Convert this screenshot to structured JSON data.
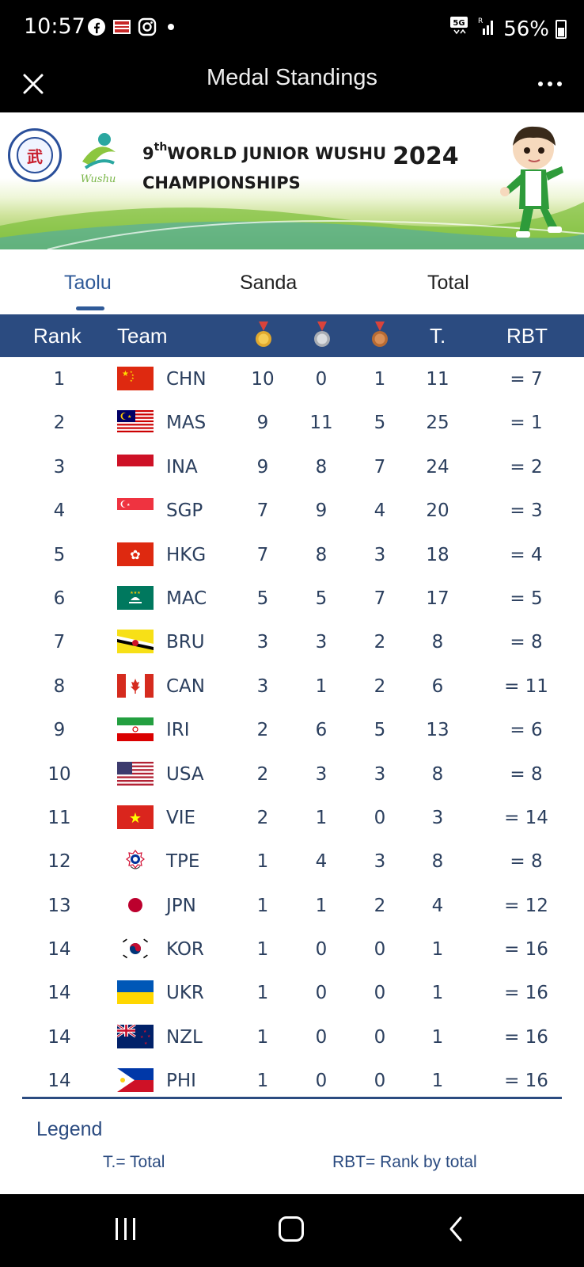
{
  "status_bar": {
    "time": "10:57",
    "battery": "56%",
    "network": "5G"
  },
  "app_bar": {
    "title": "Medal Standings"
  },
  "banner": {
    "ordinal": "9",
    "ordinal_suffix": "th",
    "title_line1": "WORLD JUNIOR WUSHU",
    "year": "2024",
    "title_line2": "CHAMPIONSHIPS",
    "logo_text": "Wushu"
  },
  "tabs": [
    {
      "label": "Taolu",
      "active": true
    },
    {
      "label": "Sanda",
      "active": false
    },
    {
      "label": "Total",
      "active": false
    }
  ],
  "table": {
    "headers": {
      "rank": "Rank",
      "team": "Team",
      "gold_icon": "gold-medal-icon",
      "silver_icon": "silver-medal-icon",
      "bronze_icon": "bronze-medal-icon",
      "total": "T.",
      "rbt": "RBT"
    },
    "rows": [
      {
        "rank": "1",
        "team": "CHN",
        "flag": "china-flag-icon",
        "gold": "10",
        "silver": "0",
        "bronze": "1",
        "total": "11",
        "rbt": "= 7"
      },
      {
        "rank": "2",
        "team": "MAS",
        "flag": "malaysia-flag-icon",
        "gold": "9",
        "silver": "11",
        "bronze": "5",
        "total": "25",
        "rbt": "= 1"
      },
      {
        "rank": "3",
        "team": "INA",
        "flag": "indonesia-flag-icon",
        "gold": "9",
        "silver": "8",
        "bronze": "7",
        "total": "24",
        "rbt": "= 2"
      },
      {
        "rank": "4",
        "team": "SGP",
        "flag": "singapore-flag-icon",
        "gold": "7",
        "silver": "9",
        "bronze": "4",
        "total": "20",
        "rbt": "= 3"
      },
      {
        "rank": "5",
        "team": "HKG",
        "flag": "hong-kong-flag-icon",
        "gold": "7",
        "silver": "8",
        "bronze": "3",
        "total": "18",
        "rbt": "= 4"
      },
      {
        "rank": "6",
        "team": "MAC",
        "flag": "macau-flag-icon",
        "gold": "5",
        "silver": "5",
        "bronze": "7",
        "total": "17",
        "rbt": "= 5"
      },
      {
        "rank": "7",
        "team": "BRU",
        "flag": "brunei-flag-icon",
        "gold": "3",
        "silver": "3",
        "bronze": "2",
        "total": "8",
        "rbt": "= 8"
      },
      {
        "rank": "8",
        "team": "CAN",
        "flag": "canada-flag-icon",
        "gold": "3",
        "silver": "1",
        "bronze": "2",
        "total": "6",
        "rbt": "= 11"
      },
      {
        "rank": "9",
        "team": "IRI",
        "flag": "iran-flag-icon",
        "gold": "2",
        "silver": "6",
        "bronze": "5",
        "total": "13",
        "rbt": "= 6"
      },
      {
        "rank": "10",
        "team": "USA",
        "flag": "usa-flag-icon",
        "gold": "2",
        "silver": "3",
        "bronze": "3",
        "total": "8",
        "rbt": "= 8"
      },
      {
        "rank": "11",
        "team": "VIE",
        "flag": "vietnam-flag-icon",
        "gold": "2",
        "silver": "1",
        "bronze": "0",
        "total": "3",
        "rbt": "= 14"
      },
      {
        "rank": "12",
        "team": "TPE",
        "flag": "chinese-taipei-flag-icon",
        "gold": "1",
        "silver": "4",
        "bronze": "3",
        "total": "8",
        "rbt": "= 8"
      },
      {
        "rank": "13",
        "team": "JPN",
        "flag": "japan-flag-icon",
        "gold": "1",
        "silver": "1",
        "bronze": "2",
        "total": "4",
        "rbt": "= 12"
      },
      {
        "rank": "14",
        "team": "KOR",
        "flag": "korea-flag-icon",
        "gold": "1",
        "silver": "0",
        "bronze": "0",
        "total": "1",
        "rbt": "= 16"
      },
      {
        "rank": "14",
        "team": "UKR",
        "flag": "ukraine-flag-icon",
        "gold": "1",
        "silver": "0",
        "bronze": "0",
        "total": "1",
        "rbt": "= 16"
      },
      {
        "rank": "14",
        "team": "NZL",
        "flag": "new-zealand-flag-icon",
        "gold": "1",
        "silver": "0",
        "bronze": "0",
        "total": "1",
        "rbt": "= 16"
      },
      {
        "rank": "14",
        "team": "PHI",
        "flag": "philippines-flag-icon",
        "gold": "1",
        "silver": "0",
        "bronze": "0",
        "total": "1",
        "rbt": "= 16"
      }
    ]
  },
  "legend": {
    "title": "Legend",
    "t_def": "T.= Total",
    "rbt_def": "RBT= Rank by total"
  },
  "colors": {
    "header_bg": "#2b4b80",
    "accent": "#2f5a98",
    "text": "#2b3f5e"
  }
}
